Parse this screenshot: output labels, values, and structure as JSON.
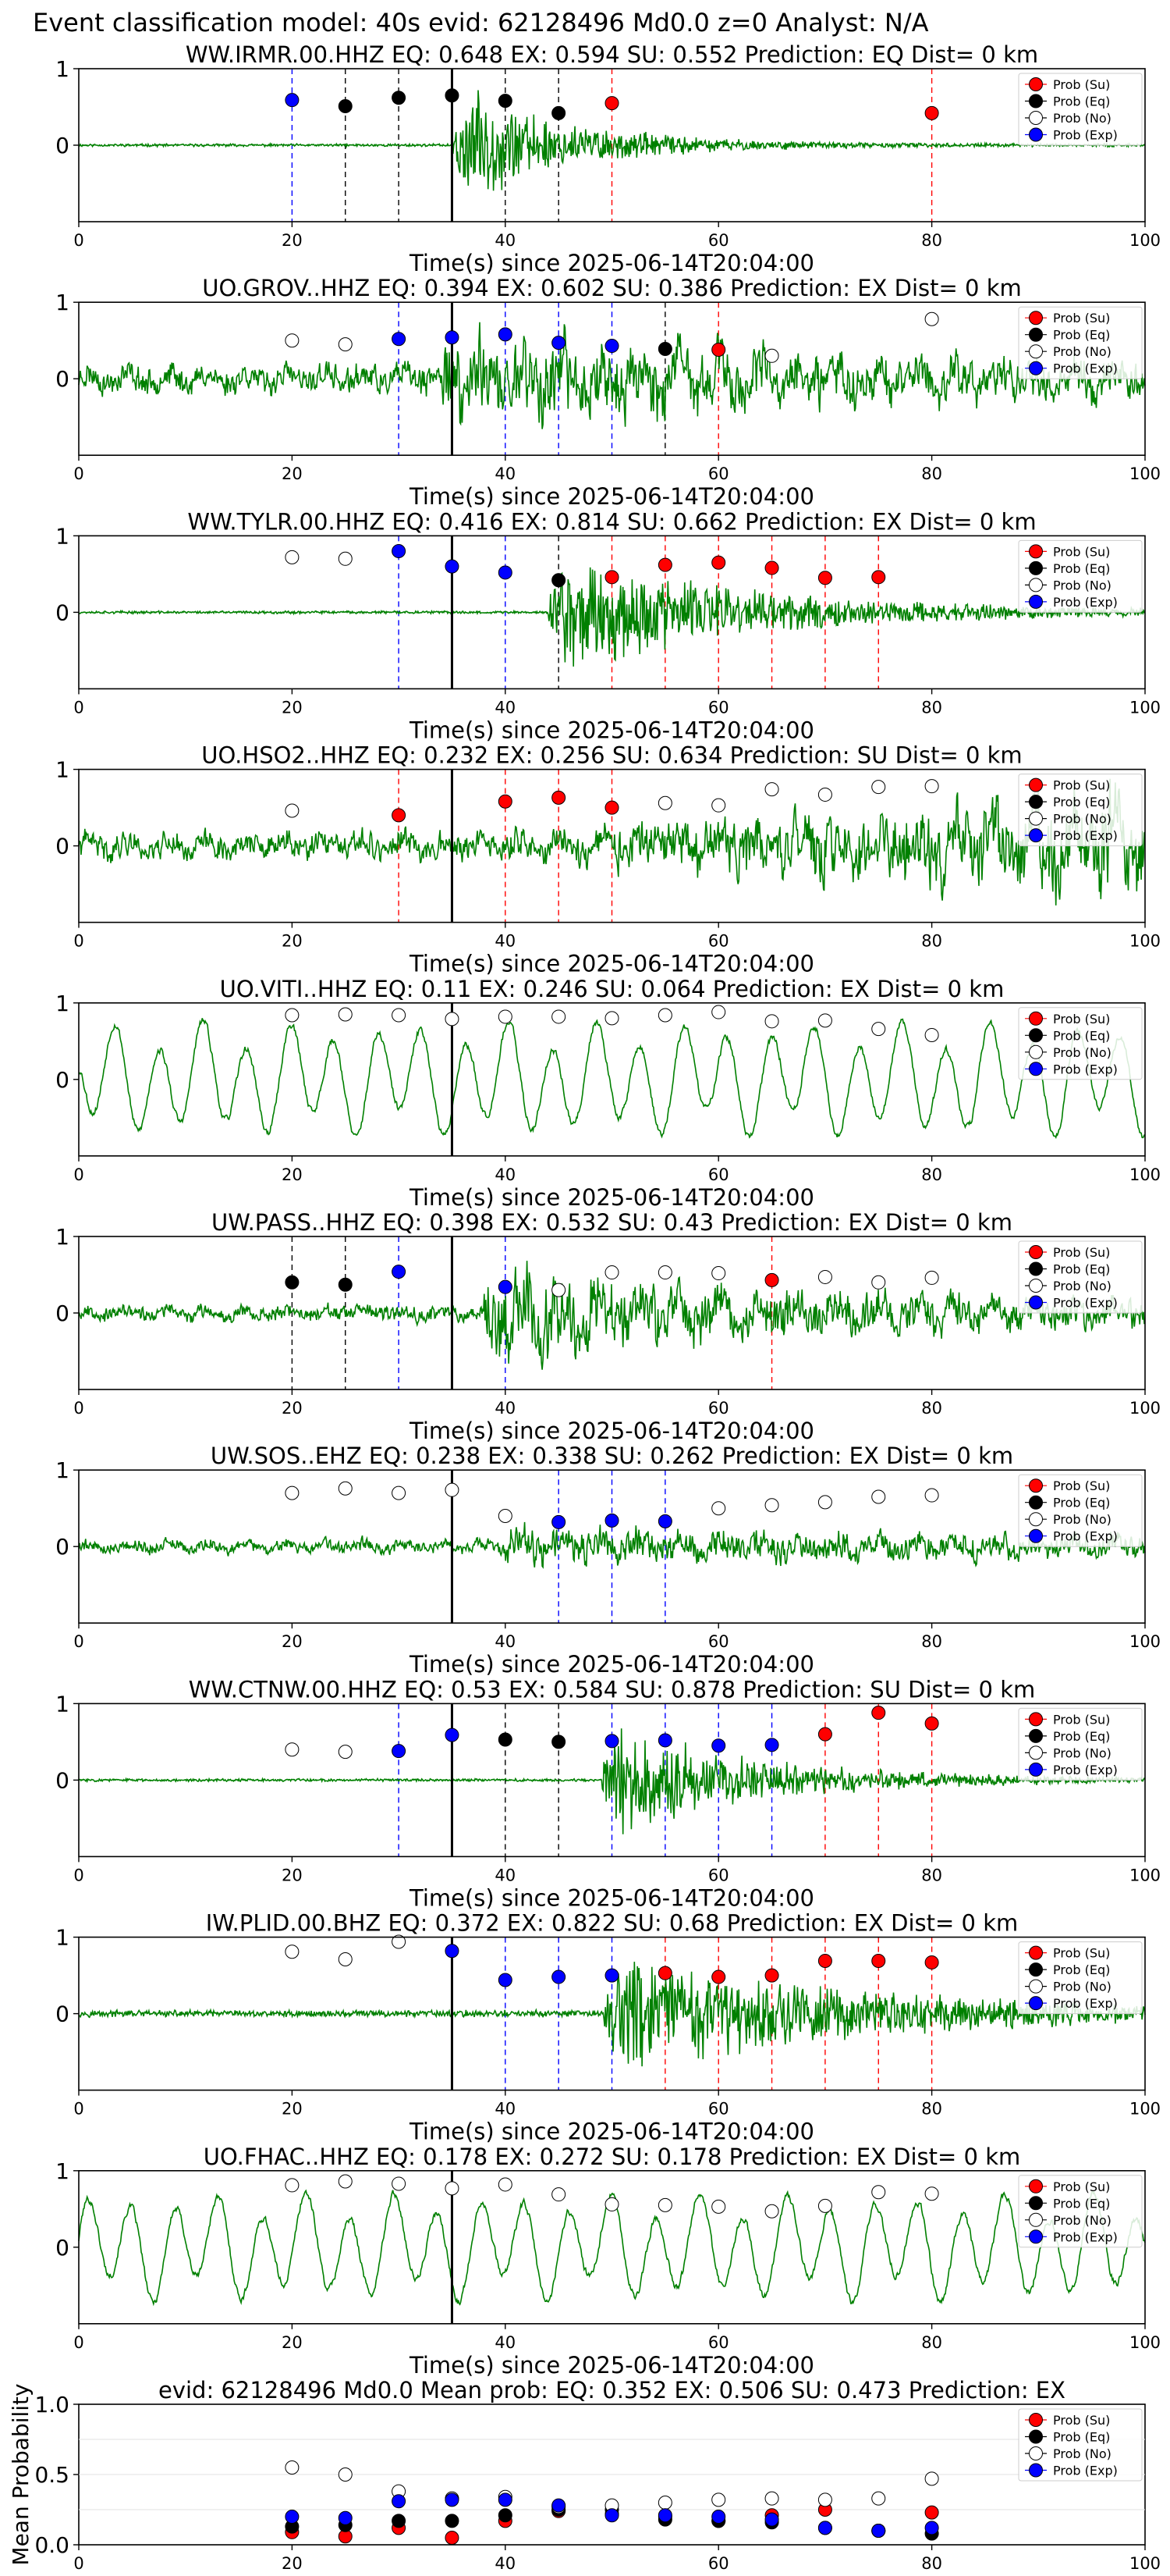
{
  "figure": {
    "suptitle": "Event classification model: 40s evid: 62128496 Md0.0 z=0 Analyst: N/A"
  },
  "legend_entries": [
    "Prob (Su)",
    "Prob (Eq)",
    "Prob (No)",
    "Prob (Exp)"
  ],
  "colors": {
    "su": "#ff0000",
    "eq": "#000000",
    "no": "#ffffff",
    "exp": "#0000ff",
    "waveform": "#008000",
    "pick": "#000000"
  },
  "chart_data": [
    {
      "type": "line",
      "title": "WW.IRMR.00.HHZ   EQ: 0.648  EX: 0.594  SU: 0.552   Prediction: EQ    Dist= 0 km",
      "xlabel": "Time(s) since 2025-06-14T20:04:00",
      "xlim": [
        0,
        100
      ],
      "ylim": [
        -1,
        1
      ],
      "xticks": [
        "0",
        "20",
        "40",
        "60",
        "80",
        "100"
      ],
      "yticks": [
        "1",
        "0"
      ],
      "pick_time": 35,
      "waveform": {
        "style": "impulsive",
        "start": 35,
        "pre_amp": 0.02,
        "peak_amp": 1.0,
        "decay": 10,
        "seed": 11
      },
      "windows": [
        {
          "t": 20,
          "cls": "exp",
          "p": 0.59
        },
        {
          "t": 25,
          "cls": "eq",
          "p": 0.51
        },
        {
          "t": 30,
          "cls": "eq",
          "p": 0.62
        },
        {
          "t": 35,
          "cls": "eq",
          "p": 0.65
        },
        {
          "t": 40,
          "cls": "eq",
          "p": 0.58
        },
        {
          "t": 45,
          "cls": "eq",
          "p": 0.42
        },
        {
          "t": 50,
          "cls": "su",
          "p": 0.55
        },
        {
          "t": 80,
          "cls": "su",
          "p": 0.42
        }
      ]
    },
    {
      "type": "line",
      "title": "UO.GROV..HHZ   EQ: 0.394  EX: 0.602  SU: 0.386   Prediction: EX    Dist= 0 km",
      "xlabel": "Time(s) since 2025-06-14T20:04:00",
      "xlim": [
        0,
        100
      ],
      "ylim": [
        -1,
        1
      ],
      "xticks": [
        "0",
        "20",
        "40",
        "60",
        "80",
        "100"
      ],
      "yticks": [
        "1",
        "0"
      ],
      "pick_time": 35,
      "waveform": {
        "style": "noisy",
        "start": 34,
        "pre_amp": 0.3,
        "peak_amp": 1.0,
        "decay": 40,
        "seed": 23
      },
      "windows": [
        {
          "t": 20,
          "cls": "no",
          "p": 0.5
        },
        {
          "t": 25,
          "cls": "no",
          "p": 0.45
        },
        {
          "t": 30,
          "cls": "exp",
          "p": 0.52
        },
        {
          "t": 35,
          "cls": "exp",
          "p": 0.54
        },
        {
          "t": 40,
          "cls": "exp",
          "p": 0.58
        },
        {
          "t": 45,
          "cls": "exp",
          "p": 0.47
        },
        {
          "t": 50,
          "cls": "exp",
          "p": 0.43
        },
        {
          "t": 55,
          "cls": "eq",
          "p": 0.39
        },
        {
          "t": 60,
          "cls": "su",
          "p": 0.38
        },
        {
          "t": 65,
          "cls": "no",
          "p": 0.3
        },
        {
          "t": 80,
          "cls": "no",
          "p": 0.78
        }
      ]
    },
    {
      "type": "line",
      "title": "WW.TYLR.00.HHZ   EQ: 0.416  EX: 0.814  SU: 0.662   Prediction: EX    Dist= 0 km",
      "xlabel": "Time(s) since 2025-06-14T20:04:00",
      "xlim": [
        0,
        100
      ],
      "ylim": [
        -1,
        1
      ],
      "xticks": [
        "0",
        "20",
        "40",
        "60",
        "80",
        "100"
      ],
      "yticks": [
        "1",
        "0"
      ],
      "pick_time": 35,
      "waveform": {
        "style": "impulsive",
        "start": 44,
        "pre_amp": 0.02,
        "peak_amp": 1.0,
        "decay": 18,
        "seed": 37
      },
      "windows": [
        {
          "t": 20,
          "cls": "no",
          "p": 0.72
        },
        {
          "t": 25,
          "cls": "no",
          "p": 0.7
        },
        {
          "t": 30,
          "cls": "exp",
          "p": 0.8
        },
        {
          "t": 35,
          "cls": "exp",
          "p": 0.6
        },
        {
          "t": 40,
          "cls": "exp",
          "p": 0.52
        },
        {
          "t": 45,
          "cls": "eq",
          "p": 0.42
        },
        {
          "t": 50,
          "cls": "su",
          "p": 0.46
        },
        {
          "t": 55,
          "cls": "su",
          "p": 0.62
        },
        {
          "t": 60,
          "cls": "su",
          "p": 0.65
        },
        {
          "t": 65,
          "cls": "su",
          "p": 0.58
        },
        {
          "t": 70,
          "cls": "su",
          "p": 0.45
        },
        {
          "t": 75,
          "cls": "su",
          "p": 0.46
        }
      ]
    },
    {
      "type": "line",
      "title": "UO.HSO2..HHZ   EQ: 0.232  EX: 0.256  SU: 0.634   Prediction: SU    Dist= 0 km",
      "xlabel": "Time(s) since 2025-06-14T20:04:00",
      "xlim": [
        0,
        100
      ],
      "ylim": [
        -1,
        1
      ],
      "xticks": [
        "0",
        "20",
        "40",
        "60",
        "80",
        "100"
      ],
      "yticks": [
        "1",
        "0"
      ],
      "pick_time": 35,
      "waveform": {
        "style": "growing",
        "start": 38,
        "pre_amp": 0.28,
        "peak_amp": 1.0,
        "decay": 0,
        "seed": 41
      },
      "windows": [
        {
          "t": 20,
          "cls": "no",
          "p": 0.46
        },
        {
          "t": 30,
          "cls": "su",
          "p": 0.4
        },
        {
          "t": 40,
          "cls": "su",
          "p": 0.58
        },
        {
          "t": 45,
          "cls": "su",
          "p": 0.63
        },
        {
          "t": 50,
          "cls": "su",
          "p": 0.5
        },
        {
          "t": 55,
          "cls": "no",
          "p": 0.56
        },
        {
          "t": 60,
          "cls": "no",
          "p": 0.53
        },
        {
          "t": 65,
          "cls": "no",
          "p": 0.74
        },
        {
          "t": 70,
          "cls": "no",
          "p": 0.67
        },
        {
          "t": 75,
          "cls": "no",
          "p": 0.77
        },
        {
          "t": 80,
          "cls": "no",
          "p": 0.78
        }
      ]
    },
    {
      "type": "line",
      "title": "UO.VITI..HHZ   EQ: 0.11  EX: 0.246  SU: 0.064   Prediction: EX    Dist= 0 km",
      "xlabel": "Time(s) since 2025-06-14T20:04:00",
      "xlim": [
        0,
        100
      ],
      "ylim": [
        -1,
        1
      ],
      "xticks": [
        "0",
        "20",
        "40",
        "60",
        "80",
        "100"
      ],
      "yticks": [
        "1",
        "0"
      ],
      "pick_time": 35,
      "waveform": {
        "style": "oscillating",
        "start": 0,
        "pre_amp": 0.8,
        "peak_amp": 0.8,
        "decay": 0,
        "seed": 53
      },
      "windows": [
        {
          "t": 20,
          "cls": "no",
          "p": 0.84
        },
        {
          "t": 25,
          "cls": "no",
          "p": 0.85
        },
        {
          "t": 30,
          "cls": "no",
          "p": 0.84
        },
        {
          "t": 35,
          "cls": "no",
          "p": 0.79
        },
        {
          "t": 40,
          "cls": "no",
          "p": 0.82
        },
        {
          "t": 45,
          "cls": "no",
          "p": 0.82
        },
        {
          "t": 50,
          "cls": "no",
          "p": 0.8
        },
        {
          "t": 55,
          "cls": "no",
          "p": 0.84
        },
        {
          "t": 60,
          "cls": "no",
          "p": 0.88
        },
        {
          "t": 65,
          "cls": "no",
          "p": 0.76
        },
        {
          "t": 70,
          "cls": "no",
          "p": 0.77
        },
        {
          "t": 75,
          "cls": "no",
          "p": 0.66
        },
        {
          "t": 80,
          "cls": "no",
          "p": 0.58
        }
      ]
    },
    {
      "type": "line",
      "title": "UW.PASS..HHZ   EQ: 0.398  EX: 0.532  SU: 0.43   Prediction: EX    Dist= 0 km",
      "xlabel": "Time(s) since 2025-06-14T20:04:00",
      "xlim": [
        0,
        100
      ],
      "ylim": [
        -1,
        1
      ],
      "xticks": [
        "0",
        "20",
        "40",
        "60",
        "80",
        "100"
      ],
      "yticks": [
        "1",
        "0"
      ],
      "pick_time": 35,
      "waveform": {
        "style": "noisy",
        "start": 38,
        "pre_amp": 0.16,
        "peak_amp": 0.95,
        "decay": 35,
        "seed": 67
      },
      "windows": [
        {
          "t": 20,
          "cls": "eq",
          "p": 0.4
        },
        {
          "t": 25,
          "cls": "eq",
          "p": 0.37
        },
        {
          "t": 30,
          "cls": "exp",
          "p": 0.54
        },
        {
          "t": 40,
          "cls": "exp",
          "p": 0.34
        },
        {
          "t": 45,
          "cls": "no",
          "p": 0.3
        },
        {
          "t": 50,
          "cls": "no",
          "p": 0.53
        },
        {
          "t": 55,
          "cls": "no",
          "p": 0.53
        },
        {
          "t": 60,
          "cls": "no",
          "p": 0.52
        },
        {
          "t": 65,
          "cls": "su",
          "p": 0.43
        },
        {
          "t": 70,
          "cls": "no",
          "p": 0.47
        },
        {
          "t": 75,
          "cls": "no",
          "p": 0.4
        },
        {
          "t": 80,
          "cls": "no",
          "p": 0.46
        }
      ]
    },
    {
      "type": "line",
      "title": "UW.SOS..EHZ   EQ: 0.238  EX: 0.338  SU: 0.262   Prediction: EX    Dist= 0 km",
      "xlabel": "Time(s) since 2025-06-14T20:04:00",
      "xlim": [
        0,
        100
      ],
      "ylim": [
        -1,
        1
      ],
      "xticks": [
        "0",
        "20",
        "40",
        "60",
        "80",
        "100"
      ],
      "yticks": [
        "1",
        "0"
      ],
      "pick_time": 35,
      "waveform": {
        "style": "noisy",
        "start": 40,
        "pre_amp": 0.14,
        "peak_amp": 0.4,
        "decay": 60,
        "seed": 79
      },
      "windows": [
        {
          "t": 20,
          "cls": "no",
          "p": 0.7
        },
        {
          "t": 25,
          "cls": "no",
          "p": 0.76
        },
        {
          "t": 30,
          "cls": "no",
          "p": 0.7
        },
        {
          "t": 35,
          "cls": "no",
          "p": 0.74
        },
        {
          "t": 40,
          "cls": "no",
          "p": 0.4
        },
        {
          "t": 45,
          "cls": "exp",
          "p": 0.32
        },
        {
          "t": 50,
          "cls": "exp",
          "p": 0.34
        },
        {
          "t": 55,
          "cls": "exp",
          "p": 0.33
        },
        {
          "t": 60,
          "cls": "no",
          "p": 0.5
        },
        {
          "t": 65,
          "cls": "no",
          "p": 0.54
        },
        {
          "t": 70,
          "cls": "no",
          "p": 0.58
        },
        {
          "t": 75,
          "cls": "no",
          "p": 0.65
        },
        {
          "t": 80,
          "cls": "no",
          "p": 0.67
        }
      ]
    },
    {
      "type": "line",
      "title": "WW.CTNW.00.HHZ   EQ: 0.53  EX: 0.584  SU: 0.878   Prediction: SU    Dist= 0 km",
      "xlabel": "Time(s) since 2025-06-14T20:04:00",
      "xlim": [
        0,
        100
      ],
      "ylim": [
        -1,
        1
      ],
      "xticks": [
        "0",
        "20",
        "40",
        "60",
        "80",
        "100"
      ],
      "yticks": [
        "1",
        "0"
      ],
      "pick_time": 35,
      "waveform": {
        "style": "impulsive",
        "start": 49,
        "pre_amp": 0.02,
        "peak_amp": 0.9,
        "decay": 14,
        "seed": 83
      },
      "windows": [
        {
          "t": 20,
          "cls": "no",
          "p": 0.4
        },
        {
          "t": 25,
          "cls": "no",
          "p": 0.37
        },
        {
          "t": 30,
          "cls": "exp",
          "p": 0.38
        },
        {
          "t": 35,
          "cls": "exp",
          "p": 0.59
        },
        {
          "t": 40,
          "cls": "eq",
          "p": 0.53
        },
        {
          "t": 45,
          "cls": "eq",
          "p": 0.5
        },
        {
          "t": 50,
          "cls": "exp",
          "p": 0.51
        },
        {
          "t": 55,
          "cls": "exp",
          "p": 0.52
        },
        {
          "t": 60,
          "cls": "exp",
          "p": 0.45
        },
        {
          "t": 65,
          "cls": "exp",
          "p": 0.46
        },
        {
          "t": 70,
          "cls": "su",
          "p": 0.6
        },
        {
          "t": 75,
          "cls": "su",
          "p": 0.88
        },
        {
          "t": 80,
          "cls": "su",
          "p": 0.74
        }
      ]
    },
    {
      "type": "line",
      "title": "IW.PLID.00.BHZ   EQ: 0.372  EX: 0.822  SU: 0.68   Prediction: EX    Dist= 0 km",
      "xlabel": "Time(s) since 2025-06-14T20:04:00",
      "xlim": [
        0,
        100
      ],
      "ylim": [
        -1,
        1
      ],
      "xticks": [
        "0",
        "20",
        "40",
        "60",
        "80",
        "100"
      ],
      "yticks": [
        "1",
        "0"
      ],
      "pick_time": 35,
      "waveform": {
        "style": "impulsive",
        "start": 49,
        "pre_amp": 0.05,
        "peak_amp": 1.0,
        "decay": 22,
        "seed": 97
      },
      "windows": [
        {
          "t": 20,
          "cls": "no",
          "p": 0.81
        },
        {
          "t": 25,
          "cls": "no",
          "p": 0.71
        },
        {
          "t": 30,
          "cls": "no",
          "p": 0.94
        },
        {
          "t": 35,
          "cls": "exp",
          "p": 0.82
        },
        {
          "t": 40,
          "cls": "exp",
          "p": 0.44
        },
        {
          "t": 45,
          "cls": "exp",
          "p": 0.48
        },
        {
          "t": 50,
          "cls": "exp",
          "p": 0.5
        },
        {
          "t": 55,
          "cls": "su",
          "p": 0.53
        },
        {
          "t": 60,
          "cls": "su",
          "p": 0.48
        },
        {
          "t": 65,
          "cls": "su",
          "p": 0.5
        },
        {
          "t": 70,
          "cls": "su",
          "p": 0.69
        },
        {
          "t": 75,
          "cls": "su",
          "p": 0.69
        },
        {
          "t": 80,
          "cls": "su",
          "p": 0.67
        }
      ]
    },
    {
      "type": "line",
      "title": "UO.FHAC..HHZ   EQ: 0.178  EX: 0.272  SU: 0.178   Prediction: EX    Dist= 0 km",
      "xlabel": "Time(s) since 2025-06-14T20:04:00",
      "xlim": [
        0,
        100
      ],
      "ylim": [
        -1,
        1
      ],
      "xticks": [
        "0",
        "20",
        "40",
        "60",
        "80",
        "100"
      ],
      "yticks": [
        "1",
        "0"
      ],
      "pick_time": 35,
      "waveform": {
        "style": "oscillating",
        "start": 0,
        "pre_amp": 0.75,
        "peak_amp": 0.85,
        "decay": 0,
        "seed": 101
      },
      "windows": [
        {
          "t": 20,
          "cls": "no",
          "p": 0.81
        },
        {
          "t": 25,
          "cls": "no",
          "p": 0.86
        },
        {
          "t": 30,
          "cls": "no",
          "p": 0.83
        },
        {
          "t": 35,
          "cls": "no",
          "p": 0.77
        },
        {
          "t": 40,
          "cls": "no",
          "p": 0.82
        },
        {
          "t": 45,
          "cls": "no",
          "p": 0.69
        },
        {
          "t": 50,
          "cls": "no",
          "p": 0.56
        },
        {
          "t": 55,
          "cls": "no",
          "p": 0.55
        },
        {
          "t": 60,
          "cls": "no",
          "p": 0.53
        },
        {
          "t": 65,
          "cls": "no",
          "p": 0.47
        },
        {
          "t": 70,
          "cls": "no",
          "p": 0.54
        },
        {
          "t": 75,
          "cls": "no",
          "p": 0.72
        },
        {
          "t": 80,
          "cls": "no",
          "p": 0.7
        }
      ]
    },
    {
      "type": "scatter",
      "title": "evid: 62128496  Md0.0   Mean prob:   EQ: 0.352  EX: 0.506  SU: 0.473   Prediction: EX",
      "xlabel": "",
      "ylabel": "Mean Probability",
      "xlim": [
        0,
        100
      ],
      "ylim": [
        0,
        1
      ],
      "xticks": [
        "0",
        "20",
        "40",
        "60",
        "80",
        "100"
      ],
      "yticks": [
        "0.0",
        "0.5",
        "1.0"
      ],
      "x": [
        20,
        25,
        30,
        35,
        40,
        45,
        50,
        55,
        60,
        65,
        70,
        75,
        80
      ],
      "series": [
        {
          "name": "Prob (Su)",
          "cls": "su",
          "values": [
            0.09,
            0.06,
            0.12,
            0.05,
            0.17,
            0.24,
            0.22,
            0.2,
            0.17,
            0.21,
            0.25,
            0.1,
            0.23
          ]
        },
        {
          "name": "Prob (Eq)",
          "cls": "eq",
          "values": [
            0.13,
            0.14,
            0.17,
            0.17,
            0.21,
            0.25,
            0.25,
            0.18,
            0.17,
            0.16,
            0.12,
            0.1,
            0.08
          ]
        },
        {
          "name": "Prob (No)",
          "cls": "no",
          "values": [
            0.55,
            0.5,
            0.38,
            0.33,
            0.34,
            0.27,
            0.28,
            0.3,
            0.32,
            0.33,
            0.32,
            0.33,
            0.47
          ]
        },
        {
          "name": "Prob (Exp)",
          "cls": "exp",
          "values": [
            0.2,
            0.19,
            0.31,
            0.32,
            0.32,
            0.28,
            0.21,
            0.21,
            0.2,
            0.18,
            0.12,
            0.1,
            0.12
          ]
        }
      ]
    }
  ]
}
